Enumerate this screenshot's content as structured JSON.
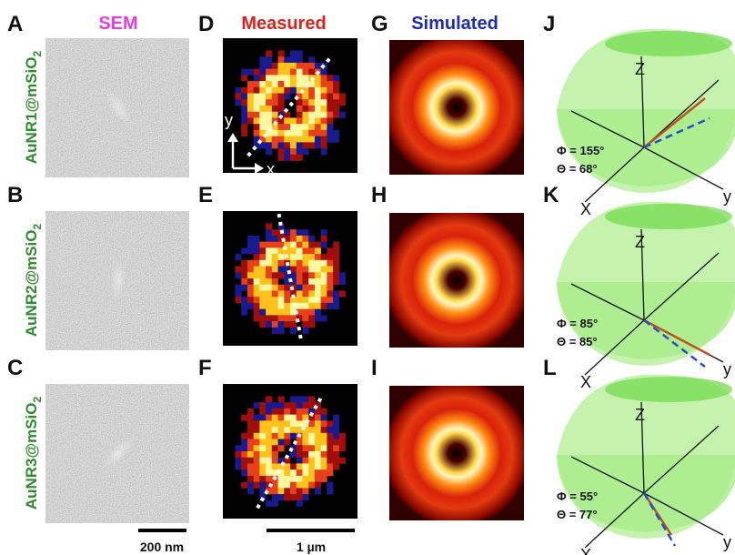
{
  "headers": {
    "sem": "SEM",
    "measured": "Measured",
    "simulated": "Simulated"
  },
  "rows": [
    {
      "letters": [
        "A",
        "D",
        "G",
        "J"
      ],
      "label": {
        "text": "AuNR1@mSiO",
        "subscript": "2"
      },
      "phi": "Φ = 155°",
      "theta": "Θ = 68°"
    },
    {
      "letters": [
        "B",
        "E",
        "H",
        "K"
      ],
      "label": {
        "text": "AuNR2@mSiO",
        "subscript": "2"
      },
      "phi": "Φ = 85°",
      "theta": "Θ = 85°"
    },
    {
      "letters": [
        "C",
        "F",
        "I",
        "L"
      ],
      "label": {
        "text": "AuNR3@mSiO",
        "subscript": "2"
      },
      "phi": "Φ = 55°",
      "theta": "Θ = 77°"
    }
  ],
  "inset_axes": {
    "x": "x",
    "y": "y"
  },
  "diagram_axes": {
    "z": "Z",
    "x": "X",
    "y": "y"
  },
  "scale_bars": {
    "sem": "200 nm",
    "measured": "1 µm"
  }
}
